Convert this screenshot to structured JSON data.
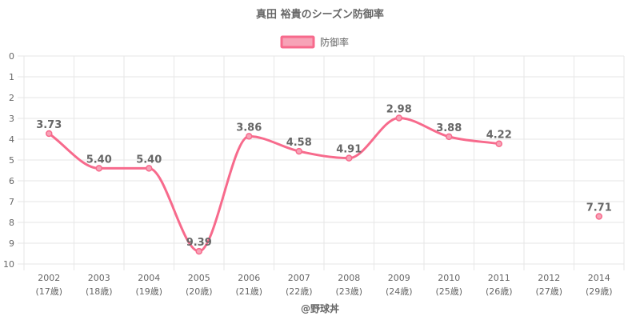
{
  "chart_data": {
    "type": "line",
    "title": "真田 裕貴のシーズン防御率",
    "legend": {
      "label": "防御率",
      "position": "top"
    },
    "categories": [
      "2002",
      "2003",
      "2004",
      "2005",
      "2006",
      "2007",
      "2008",
      "2009",
      "2010",
      "2011",
      "2012",
      "2014"
    ],
    "ages": [
      "(17歳)",
      "(18歳)",
      "(19歳)",
      "(20歳)",
      "(21歳)",
      "(22歳)",
      "(23歳)",
      "(24歳)",
      "(25歳)",
      "(26歳)",
      "(27歳)",
      "(29歳)"
    ],
    "series": [
      {
        "name": "防御率",
        "values": [
          3.73,
          5.4,
          5.4,
          9.39,
          3.86,
          4.58,
          4.91,
          2.98,
          3.88,
          4.22,
          null,
          7.71
        ],
        "labels": [
          "3.73",
          "5.40",
          "5.40",
          "9.39",
          "3.86",
          "4.58",
          "4.91",
          "2.98",
          "3.88",
          "4.22",
          "",
          "7.71"
        ]
      }
    ],
    "ylim": [
      0,
      10
    ],
    "y_reversed": true,
    "yticks": [
      "0",
      "1",
      "2",
      "3",
      "4",
      "5",
      "6",
      "7",
      "8",
      "9",
      "10"
    ],
    "grid": true,
    "colors": {
      "line": "#f76a8c",
      "fill": "#f7a3b7",
      "grid": "#e6e6e6",
      "text": "#666666"
    }
  },
  "credit": "@野球丼"
}
